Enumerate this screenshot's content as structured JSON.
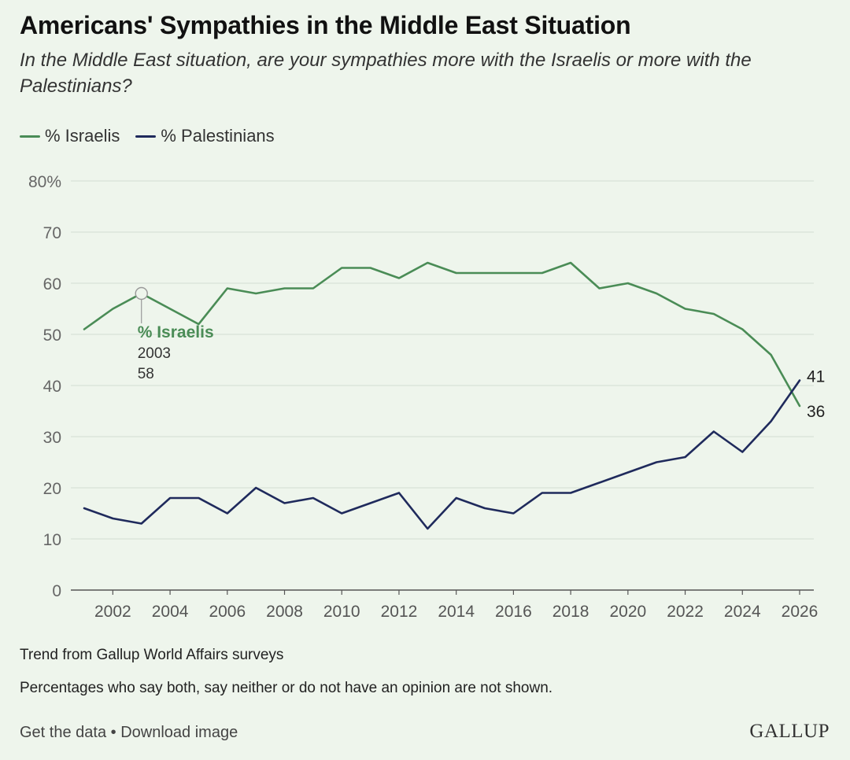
{
  "header": {
    "title": "Americans' Sympathies in the Middle East Situation",
    "subtitle": "In the Middle East situation, are your sympathies more with the Israelis or more with the Palestinians?"
  },
  "legend": [
    {
      "label": "% Israelis",
      "color": "#4a8c56"
    },
    {
      "label": "% Palestinians",
      "color": "#1f2a5c"
    }
  ],
  "chart_data": {
    "type": "line",
    "title": "Americans' Sympathies in the Middle East Situation",
    "xlabel": "",
    "ylabel": "",
    "xlim": [
      2001,
      2026
    ],
    "ylim": [
      0,
      80
    ],
    "x_ticks": [
      2002,
      2004,
      2006,
      2008,
      2010,
      2012,
      2014,
      2016,
      2018,
      2020,
      2022,
      2024,
      2026
    ],
    "y_ticks": [
      0,
      10,
      20,
      30,
      40,
      50,
      60,
      70,
      80
    ],
    "y_tick_labels": [
      "0",
      "10",
      "20",
      "30",
      "40",
      "50",
      "60",
      "70",
      "80%"
    ],
    "grid": true,
    "x": [
      2001,
      2002,
      2003,
      2004,
      2005,
      2006,
      2007,
      2008,
      2009,
      2010,
      2011,
      2012,
      2013,
      2014,
      2015,
      2016,
      2017,
      2018,
      2019,
      2020,
      2021,
      2022,
      2023,
      2024,
      2025,
      2026
    ],
    "series": [
      {
        "name": "% Israelis",
        "color": "#4a8c56",
        "values": [
          51,
          55,
          58,
          55,
          52,
          59,
          58,
          59,
          59,
          63,
          63,
          61,
          64,
          62,
          62,
          62,
          62,
          64,
          59,
          60,
          58,
          55,
          54,
          51,
          46,
          36
        ],
        "end_label": "36"
      },
      {
        "name": "% Palestinians",
        "color": "#1f2a5c",
        "values": [
          16,
          14,
          13,
          18,
          18,
          15,
          20,
          17,
          18,
          15,
          17,
          19,
          12,
          18,
          16,
          15,
          19,
          19,
          21,
          23,
          25,
          26,
          31,
          27,
          33,
          41
        ],
        "end_label": "41"
      }
    ],
    "annotation": {
      "series": "% Israelis",
      "label": "% Israelis",
      "year": "2003",
      "value": "58"
    }
  },
  "notes": {
    "trend": "Trend from Gallup World Affairs surveys",
    "footnote": "Percentages who say both, say neither or do not have an opinion are not shown."
  },
  "footer": {
    "get_data": "Get the data",
    "separator": "•",
    "download": "Download image",
    "logo": "GALLUP"
  }
}
